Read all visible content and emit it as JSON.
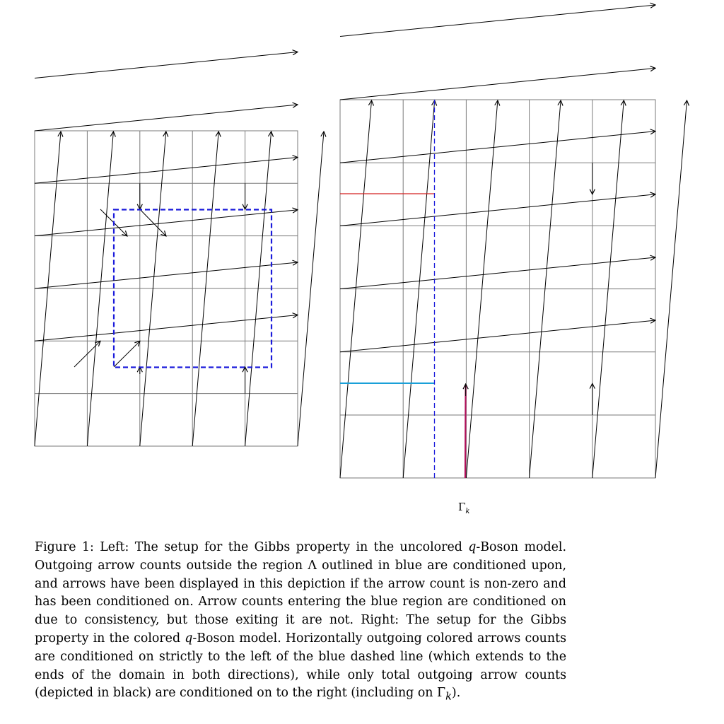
{
  "figure": {
    "gamma_label": "Γ",
    "gamma_subscript": "k"
  },
  "caption": {
    "figure_label": "Figure 1:",
    "text_1": " Left: The setup for the Gibbs property in the uncolored ",
    "q_1": "q",
    "text_2": "-Boson model. Outgoing arrow counts outside the region Λ outlined in blue are conditioned upon, and arrows have been displayed in this depiction if the arrow count is non-zero and has been conditioned on. Arrow counts entering the blue region are conditioned on due to consistency, but those exiting it are not. Right: The setup for the Gibbs property in the colored ",
    "q_2": "q",
    "text_3": "-Boson model. Horizontally outgoing colored arrows counts are conditioned on strictly to the left of the blue dashed line (which extends to the ends of the domain in both directions), while only total outgoing arrow counts (depicted in black) are conditioned on to the right (including on ",
    "gamma": "Γ",
    "gamma_sub": "k",
    "text_4": ")."
  },
  "colors": {
    "grid": "#7a7a7a",
    "arrow": "#000000",
    "region_outline": "#1a1adb",
    "red_path": "#d42020",
    "cyan_path": "#1aa0d8",
    "magenta_path": "#b0105a"
  }
}
